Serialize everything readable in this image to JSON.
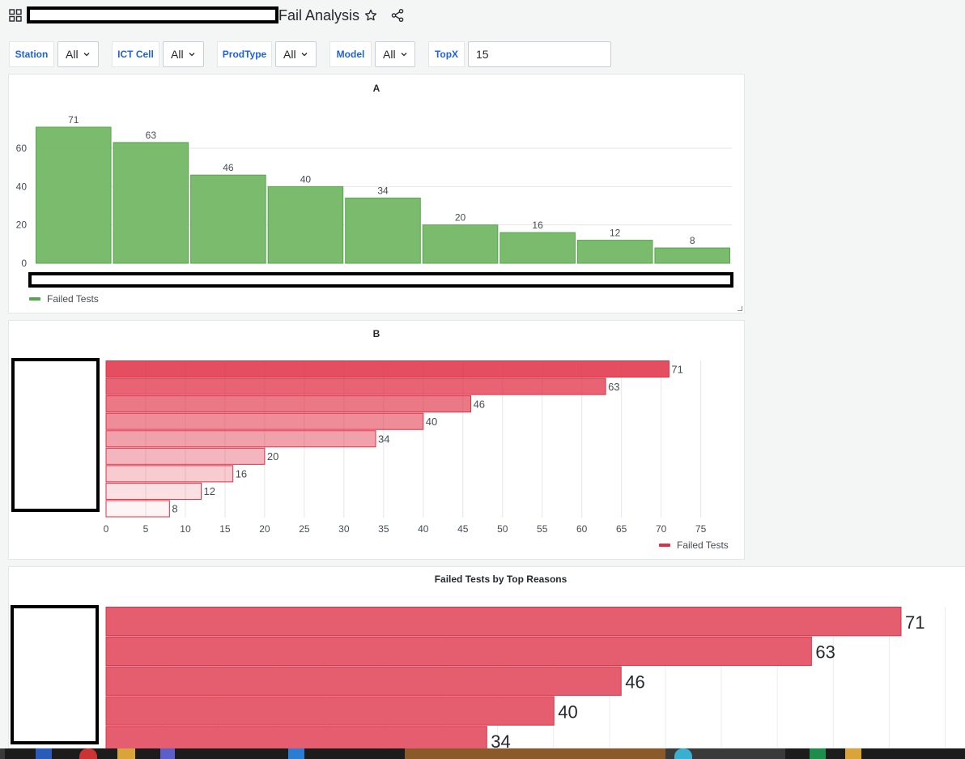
{
  "header": {
    "title": "Fail Analysis"
  },
  "variables": [
    {
      "label": "Station",
      "value": "All"
    },
    {
      "label": "ICT Cell",
      "value": "All"
    },
    {
      "label": "ProdType",
      "value": "All"
    },
    {
      "label": "Model",
      "value": "All"
    },
    {
      "label": "TopX",
      "value": "15"
    }
  ],
  "colors": {
    "green": "#73b766",
    "green_stroke": "#56a64b",
    "red": "#e02f44",
    "red_fill": "#e35567",
    "link_blue": "#1f62e0"
  },
  "panels": {
    "a": {
      "title": "A",
      "legend": "Failed Tests"
    },
    "b": {
      "title": "B",
      "legend": "Failed Tests"
    },
    "c": {
      "title": "Failed Tests by Top Reasons"
    }
  },
  "chart_data": [
    {
      "type": "bar",
      "title": "A",
      "values": [
        71,
        63,
        46,
        40,
        34,
        20,
        16,
        12,
        8
      ],
      "series": [
        {
          "name": "Failed Tests",
          "values": [
            71,
            63,
            46,
            40,
            34,
            20,
            16,
            12,
            8
          ]
        }
      ],
      "yticks": [
        0,
        20,
        40,
        60
      ],
      "ylim": [
        0,
        71
      ],
      "grid": true,
      "legend": "bottom-left"
    },
    {
      "type": "bar",
      "orientation": "horizontal",
      "title": "B",
      "values": [
        71,
        63,
        46,
        40,
        34,
        20,
        16,
        12,
        8
      ],
      "series": [
        {
          "name": "Failed Tests",
          "values": [
            71,
            63,
            46,
            40,
            34,
            20,
            16,
            12,
            8
          ]
        }
      ],
      "xticks": [
        0,
        5,
        10,
        15,
        20,
        25,
        30,
        35,
        40,
        45,
        50,
        55,
        60,
        65,
        70,
        75
      ],
      "xlim": [
        0,
        78
      ],
      "grid": true,
      "legend": "bottom-right"
    },
    {
      "type": "bar",
      "orientation": "horizontal",
      "title": "Failed Tests by Top Reasons",
      "values": [
        71,
        63,
        46,
        40,
        34
      ],
      "xlim": [
        0,
        71
      ],
      "grid": true
    }
  ]
}
